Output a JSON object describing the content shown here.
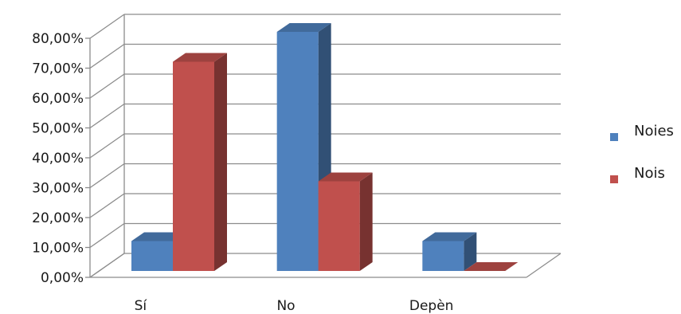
{
  "chart_data": {
    "type": "bar",
    "variant": "3d-clustered-column",
    "title": "",
    "xlabel": "",
    "ylabel": "",
    "categories": [
      "Sí",
      "No",
      "Depèn"
    ],
    "series": [
      {
        "name": "Noies",
        "color": "#4f81bd",
        "values": [
          10,
          80,
          10
        ]
      },
      {
        "name": "Nois",
        "color": "#c0504d",
        "values": [
          70,
          30,
          0
        ]
      }
    ],
    "ylim": [
      0,
      80
    ],
    "yticks": [
      "0,00%",
      "10,00%",
      "20,00%",
      "30,00%",
      "40,00%",
      "50,00%",
      "60,00%",
      "70,00%",
      "80,00%"
    ],
    "grid": true,
    "legend": "right"
  }
}
